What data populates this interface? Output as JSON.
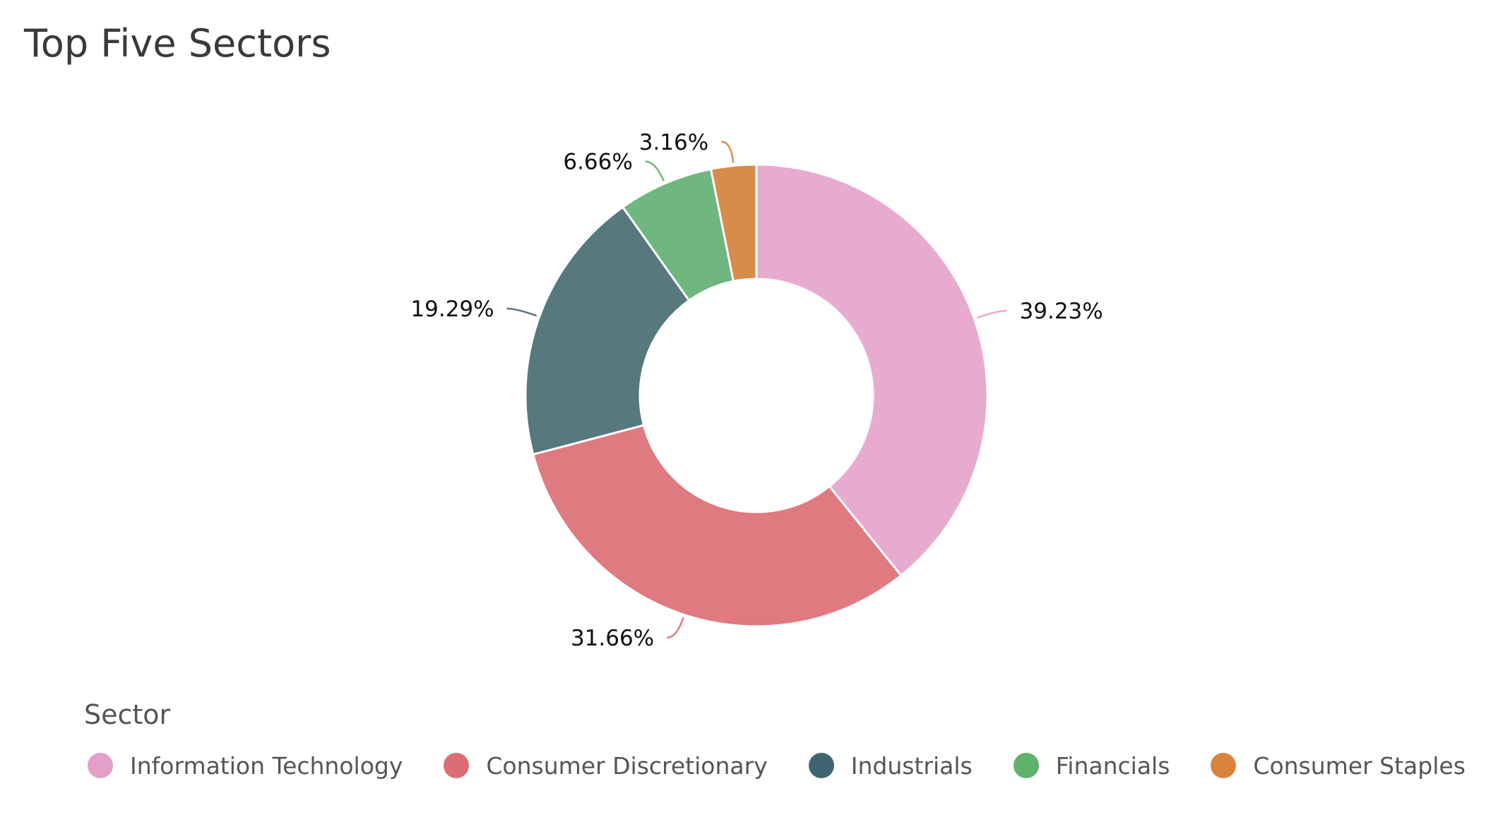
{
  "title": "Top Five Sectors",
  "chart_data": {
    "type": "pie",
    "donut": true,
    "title": "Top Five Sectors",
    "legend_title": "Sector",
    "legend_position": "bottom-left",
    "slices": [
      {
        "label": "Information Technology",
        "value": 39.23,
        "value_label": "39.23%",
        "color": "#e8abd0",
        "legend_color": "#e39fc8"
      },
      {
        "label": "Consumer Discretionary",
        "value": 31.66,
        "value_label": "31.66%",
        "color": "#df7a80",
        "legend_color": "#dc6d75"
      },
      {
        "label": "Industrials",
        "value": 19.29,
        "value_label": "19.29%",
        "color": "#57787c",
        "legend_color": "#3f6570"
      },
      {
        "label": "Financials",
        "value": 6.66,
        "value_label": "6.66%",
        "color": "#6fb77e",
        "legend_color": "#5fb26c"
      },
      {
        "label": "Consumer Staples",
        "value": 3.16,
        "value_label": "3.16%",
        "color": "#d78c4b",
        "legend_color": "#d9843d"
      }
    ]
  }
}
